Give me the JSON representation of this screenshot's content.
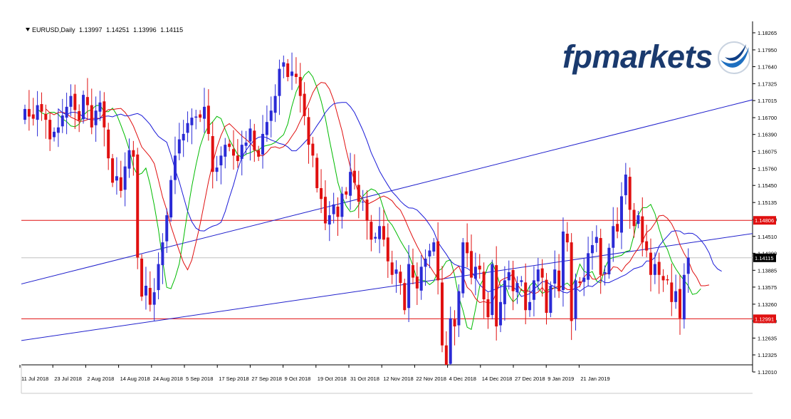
{
  "header": {
    "symbol": "EURUSD,Daily",
    "open": "1.13997",
    "high": "1.14251",
    "low": "1.13996",
    "close": "1.14115"
  },
  "brand": {
    "name": "fpmarkets",
    "logo_color": "#1a3a6e",
    "swoosh_color": "#1e6fc0"
  },
  "colors": {
    "bull": "#2b2bd6",
    "bear": "#e01010",
    "ma_fast": "#00bb00",
    "ma_mid": "#e01010",
    "ma_slow": "#1a1ad8",
    "channel": "#2020cc",
    "hline": "#e01010",
    "price_line": "#c0c0c0"
  },
  "chart_data": {
    "type": "candlestick",
    "symbol": "EURUSD",
    "timeframe": "Daily",
    "ylim": [
      1.1201,
      1.1848
    ],
    "yticks": [
      "1.18265",
      "1.17950",
      "1.17640",
      "1.17325",
      "1.17015",
      "1.16700",
      "1.16390",
      "1.16075",
      "1.15760",
      "1.15450",
      "1.15135",
      "1.14820",
      "1.14510",
      "1.14200",
      "1.13885",
      "1.13575",
      "1.13260",
      "1.12950",
      "1.12635",
      "1.12325",
      "1.12010"
    ],
    "xticks": [
      "11 Jul 2018",
      "23 Jul 2018",
      "2 Aug 2018",
      "14 Aug 2018",
      "24 Aug 2018",
      "5 Sep 2018",
      "17 Sep 2018",
      "27 Sep 2018",
      "9 Oct 2018",
      "19 Oct 2018",
      "31 Oct 2018",
      "12 Nov 2018",
      "22 Nov 2018",
      "4 Dec 2018",
      "14 Dec 2018",
      "27 Dec 2018",
      "9 Jan 2019",
      "21 Jan 2019"
    ],
    "price_labels": [
      {
        "text": "1.14806",
        "value": 1.14806,
        "kind": "level"
      },
      {
        "text": "1.14115",
        "value": 1.14115,
        "kind": "current"
      },
      {
        "text": "1.12991",
        "value": 1.12991,
        "kind": "level"
      }
    ],
    "horizontal_levels": [
      1.14806,
      1.12991
    ],
    "current_price": 1.14115,
    "channel": {
      "upper": [
        {
          "bar": 0,
          "price": 1.1365
        },
        {
          "bar": 160,
          "price": 1.1675
        }
      ],
      "lower": [
        {
          "bar": 0,
          "price": 1.126
        },
        {
          "bar": 160,
          "price": 1.144
        }
      ]
    },
    "closes": [
      1.1686,
      1.1672,
      1.1668,
      1.1693,
      1.1681,
      1.1666,
      1.163,
      1.1644,
      1.1652,
      1.1674,
      1.169,
      1.171,
      1.1684,
      1.1665,
      1.1712,
      1.1693,
      1.1652,
      1.1683,
      1.1698,
      1.1652,
      1.1595,
      1.155,
      1.1562,
      1.1535,
      1.158,
      1.161,
      1.1598,
      1.1412,
      1.134,
      1.136,
      1.1325,
      1.1348,
      1.14,
      1.144,
      1.149,
      1.1555,
      1.16,
      1.163,
      1.164,
      1.166,
      1.167,
      1.1672,
      1.167,
      1.169,
      1.164,
      1.157,
      1.1578,
      1.16,
      1.162,
      1.1616,
      1.16,
      1.159,
      1.162,
      1.1624,
      1.165,
      1.161,
      1.1598,
      1.164,
      1.1662,
      1.1683,
      1.171,
      1.176,
      1.1772,
      1.1745,
      1.1755,
      1.1745,
      1.171,
      1.1673,
      1.162,
      1.16,
      1.154,
      1.152,
      1.1475,
      1.149,
      1.151,
      1.1487,
      1.153,
      1.1528,
      1.157,
      1.155,
      1.1515,
      1.1515,
      1.148,
      1.1445,
      1.145,
      1.147,
      1.1445,
      1.1405,
      1.138,
      1.139,
      1.1365,
      1.1315,
      1.14,
      1.1375,
      1.1355,
      1.1395,
      1.141,
      1.1425,
      1.144,
      1.137,
      1.125,
      1.1212,
      1.13,
      1.1285,
      1.135,
      1.144,
      1.142,
      1.1375,
      1.1395,
      1.139,
      1.1335,
      1.1302,
      1.14,
      1.1285,
      1.133,
      1.137,
      1.1385,
      1.135,
      1.1365,
      1.137,
      1.1315,
      1.133,
      1.137,
      1.139,
      1.1375,
      1.131,
      1.136,
      1.139,
      1.135,
      1.146,
      1.144,
      1.1295,
      1.137,
      1.1365,
      1.1375,
      1.142,
      1.1435,
      1.145,
      1.138,
      1.1385,
      1.143,
      1.147,
      1.146,
      1.1525,
      1.1565,
      1.15,
      1.147,
      1.149,
      1.144,
      1.1425,
      1.138,
      1.14,
      1.138,
      1.137,
      1.137,
      1.133,
      1.135,
      1.13,
      1.138,
      1.1412
    ]
  }
}
